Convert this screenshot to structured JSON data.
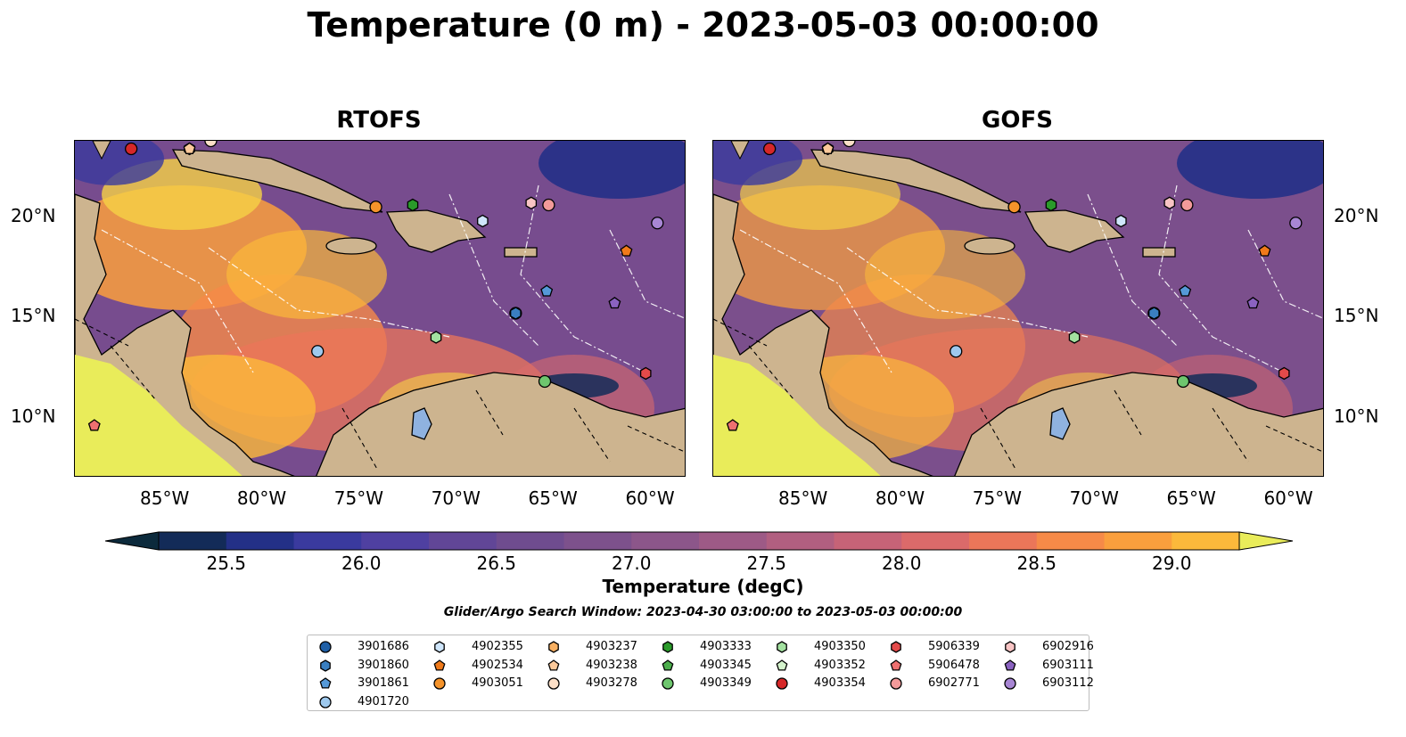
{
  "title": "Temperature (0 m) - 2023-05-03 00:00:00",
  "panels": [
    {
      "title": "RTOFS"
    },
    {
      "title": "GOFS"
    }
  ],
  "axes": {
    "x_ticks": [
      "85°W",
      "80°W",
      "75°W",
      "70°W",
      "65°W",
      "60°W"
    ],
    "y_ticks": [
      "20°N",
      "15°N",
      "10°N"
    ],
    "lon_range": [
      -89.5,
      -58.0
    ],
    "lat_range": [
      7.0,
      23.8
    ]
  },
  "colorbar": {
    "label": "Temperature (degC)",
    "ticks": [
      "25.5",
      "26.0",
      "26.5",
      "27.0",
      "27.5",
      "28.0",
      "28.5",
      "29.0"
    ],
    "range": [
      25.25,
      29.25
    ],
    "colors": [
      "#0c2a3c",
      "#132b58",
      "#233087",
      "#3a3a9e",
      "#4f40a1",
      "#614697",
      "#6f4c8f",
      "#7d518c",
      "#8c568a",
      "#9d5a86",
      "#b15f80",
      "#c66377",
      "#db6a6a",
      "#eb7659",
      "#f68a48",
      "#fa9f3d",
      "#fbb93b",
      "#f6d246",
      "#e9ec5a"
    ]
  },
  "search_window": "Glider/Argo Search Window: 2023-04-30 03:00:00 to 2023-05-03 00:00:00",
  "legend": {
    "items": [
      {
        "id": "3901686",
        "marker": "circle",
        "color": "#1f5fa6"
      },
      {
        "id": "3901860",
        "marker": "hexagon",
        "color": "#3a7fc0"
      },
      {
        "id": "3901861",
        "marker": "pentagon",
        "color": "#5599d8"
      },
      {
        "id": "4901720",
        "marker": "circle",
        "color": "#9ec9ee"
      },
      {
        "id": "4902355",
        "marker": "hexagon",
        "color": "#cfe6fb"
      },
      {
        "id": "4902534",
        "marker": "pentagon",
        "color": "#f07a1a"
      },
      {
        "id": "4903051",
        "marker": "circle",
        "color": "#f5932a"
      },
      {
        "id": "4903237",
        "marker": "hexagon",
        "color": "#f8b062"
      },
      {
        "id": "4903238",
        "marker": "pentagon",
        "color": "#fbc99a"
      },
      {
        "id": "4903278",
        "marker": "circle",
        "color": "#fde0c8"
      },
      {
        "id": "4903333",
        "marker": "hexagon",
        "color": "#2a9a2a"
      },
      {
        "id": "4903345",
        "marker": "pentagon",
        "color": "#4cae4c"
      },
      {
        "id": "4903349",
        "marker": "circle",
        "color": "#6ec66e"
      },
      {
        "id": "4903350",
        "marker": "hexagon",
        "color": "#a3e1a0"
      },
      {
        "id": "4903352",
        "marker": "pentagon",
        "color": "#d4f3cc"
      },
      {
        "id": "4903354",
        "marker": "circle",
        "color": "#d62728"
      },
      {
        "id": "5906339",
        "marker": "hexagon",
        "color": "#e34a4a"
      },
      {
        "id": "5906478",
        "marker": "pentagon",
        "color": "#ee7070"
      },
      {
        "id": "6902771",
        "marker": "circle",
        "color": "#f39a9a"
      },
      {
        "id": "6902916",
        "marker": "hexagon",
        "color": "#f8c4c4"
      },
      {
        "id": "6903111",
        "marker": "pentagon",
        "color": "#8a62c0"
      },
      {
        "id": "6903112",
        "marker": "circle",
        "color": "#a886d4"
      }
    ]
  },
  "floats": [
    {
      "id": "3901686",
      "lon": -66.8,
      "lat": 15.2
    },
    {
      "id": "3901860",
      "lon": -66.8,
      "lat": 15.2
    },
    {
      "id": "3901861",
      "lon": -65.2,
      "lat": 16.3
    },
    {
      "id": "4901720",
      "lon": -77.0,
      "lat": 13.3
    },
    {
      "id": "4902355",
      "lon": -68.5,
      "lat": 19.8
    },
    {
      "id": "4902534",
      "lon": -61.1,
      "lat": 18.3
    },
    {
      "id": "4903051",
      "lon": -74.0,
      "lat": 20.5
    },
    {
      "id": "4903237",
      "lon": -83.6,
      "lat": 23.4
    },
    {
      "id": "4903238",
      "lon": -83.6,
      "lat": 23.4
    },
    {
      "id": "4903278",
      "lon": -82.5,
      "lat": 23.8
    },
    {
      "id": "4903333",
      "lon": -72.1,
      "lat": 20.6
    },
    {
      "id": "4903349",
      "lon": -65.3,
      "lat": 11.8
    },
    {
      "id": "4903350",
      "lon": -70.9,
      "lat": 14.0
    },
    {
      "id": "4903354",
      "lon": -86.6,
      "lat": 23.4
    },
    {
      "id": "5906478",
      "lon": -88.5,
      "lat": 9.6
    },
    {
      "id": "6902771",
      "lon": -65.1,
      "lat": 20.6
    },
    {
      "id": "6902916",
      "lon": -66.0,
      "lat": 20.7
    },
    {
      "id": "6903111",
      "lon": -61.7,
      "lat": 15.7
    },
    {
      "id": "6903112",
      "lon": -59.5,
      "lat": 19.7
    },
    {
      "id": "5906339",
      "lon": -60.1,
      "lat": 12.2
    }
  ]
}
